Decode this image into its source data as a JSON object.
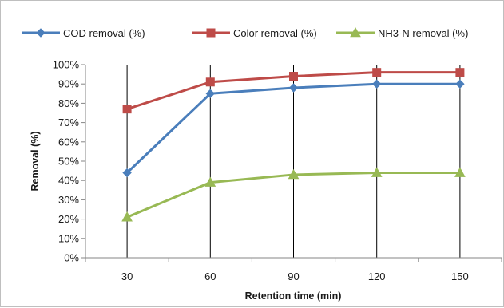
{
  "chart_data": {
    "type": "line",
    "title": "",
    "xlabel": "Retention time (min)",
    "ylabel": "Removal (%)",
    "categories": [
      "30",
      "60",
      "90",
      "120",
      "150"
    ],
    "x": [
      30,
      60,
      90,
      120,
      150
    ],
    "ylim": [
      0,
      100
    ],
    "y_ticks": [
      "0%",
      "10%",
      "20%",
      "30%",
      "40%",
      "50%",
      "60%",
      "70%",
      "80%",
      "90%",
      "100%"
    ],
    "grid": "vertical lines at each category",
    "legend_position": "top",
    "series": [
      {
        "name": "COD removal (%)",
        "color": "#4a7ebb",
        "marker": "diamond",
        "values": [
          44,
          85,
          88,
          90,
          90
        ]
      },
      {
        "name": "Color removal (%)",
        "color": "#be4b48",
        "marker": "square",
        "values": [
          77,
          91,
          94,
          96,
          96
        ]
      },
      {
        "name": "NH3-N removal (%)",
        "color": "#98b954",
        "marker": "triangle",
        "values": [
          21,
          39,
          43,
          44,
          44
        ]
      }
    ]
  }
}
